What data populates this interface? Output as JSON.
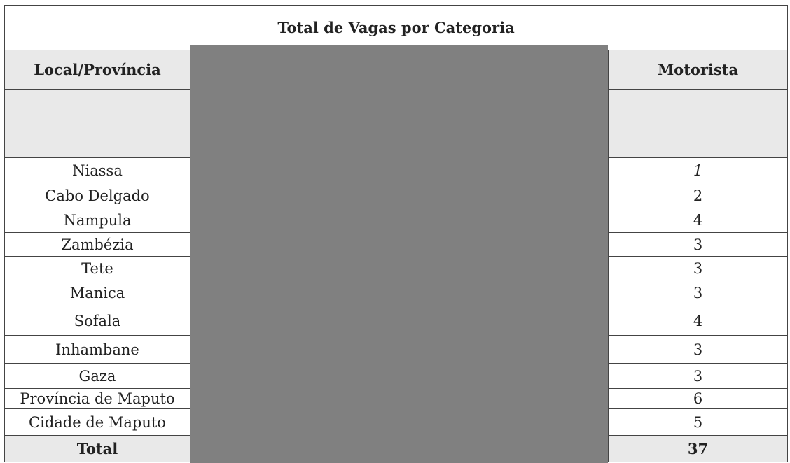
{
  "table": {
    "title": "Total de Vagas por Categoria",
    "headers": {
      "local": "Local/Província",
      "motorista": "Motorista"
    },
    "rows": [
      {
        "local": "Niassa",
        "motorista": "1"
      },
      {
        "local": "Cabo Delgado",
        "motorista": "2"
      },
      {
        "local": "Nampula",
        "motorista": "4"
      },
      {
        "local": "Zambézia",
        "motorista": "3"
      },
      {
        "local": "Tete",
        "motorista": "3"
      },
      {
        "local": "Manica",
        "motorista": "3"
      },
      {
        "local": "Sofala",
        "motorista": "4"
      },
      {
        "local": "Inhambane",
        "motorista": "3"
      },
      {
        "local": "Gaza",
        "motorista": "3"
      },
      {
        "local": "Província de Maputo",
        "motorista": "6"
      },
      {
        "local": "Cidade de Maputo",
        "motorista": "5"
      }
    ],
    "total": {
      "label": "Total",
      "motorista": "37"
    }
  },
  "colors": {
    "header_bg": "#e9e9e9",
    "redaction": "#808080"
  }
}
